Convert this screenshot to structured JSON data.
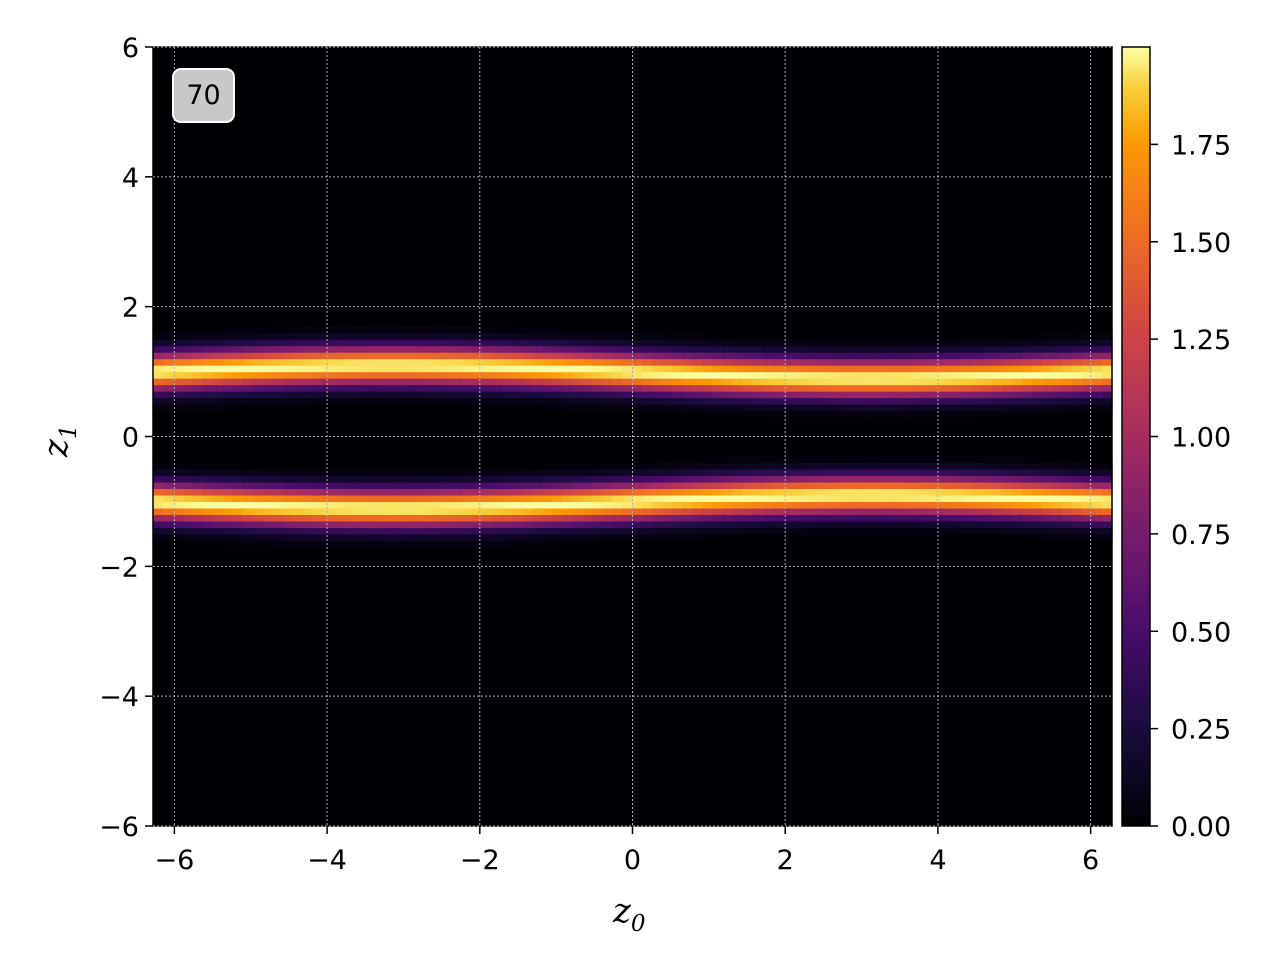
{
  "chart_data": {
    "type": "heatmap",
    "colormap": "inferno",
    "badge": "70",
    "xlabel": {
      "symbol": "z",
      "subscript": "0"
    },
    "ylabel": {
      "symbol": "z",
      "subscript": "1"
    },
    "xlim": [
      -6.28,
      6.28
    ],
    "ylim": [
      -6,
      6
    ],
    "xticks": [
      -6,
      -4,
      -2,
      0,
      2,
      4,
      6
    ],
    "yticks": [
      -6,
      -4,
      -2,
      0,
      2,
      4,
      6
    ],
    "xtick_labels": [
      "−6",
      "−4",
      "−2",
      "0",
      "2",
      "4",
      "6"
    ],
    "ytick_labels": [
      "−6",
      "−4",
      "−2",
      "0",
      "2",
      "4",
      "6"
    ],
    "grid": true,
    "colorbar": {
      "range": [
        0,
        2.0
      ],
      "ticks": [
        0,
        0.25,
        0.5,
        0.75,
        1.0,
        1.25,
        1.5,
        1.75
      ],
      "tick_labels": [
        "0.00",
        "0.25",
        "0.50",
        "0.75",
        "1.00",
        "1.25",
        "1.50",
        "1.75"
      ]
    },
    "bands": [
      {
        "name": "upper",
        "peak": 2.0,
        "center_offset": 1.0,
        "modulation": 0.1,
        "phase": "sin"
      },
      {
        "name": "lower",
        "peak": 2.0,
        "center_offset": -1.0,
        "modulation": 0.1,
        "phase": "sin"
      }
    ],
    "band_width": 0.2
  }
}
